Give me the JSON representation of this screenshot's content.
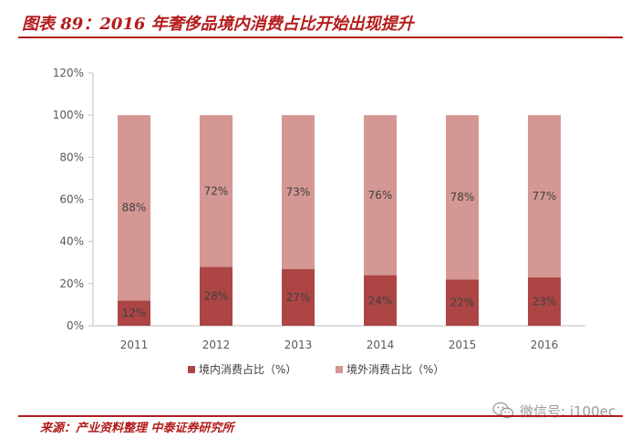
{
  "header": {
    "title": "图表 89：2016 年奢侈品境内消费占比开始出现提升"
  },
  "footer": {
    "source": "来源：产业资料整理 中泰证券研究所",
    "watermark": "微信号: i100ec",
    "wechat_icon": "wechat-icon"
  },
  "colors": {
    "accent": "#b31b1b",
    "domestic": "#ad4545",
    "overseas": "#d49793"
  },
  "chart_data": {
    "type": "bar",
    "stacked": true,
    "categories": [
      "2011",
      "2012",
      "2013",
      "2014",
      "2015",
      "2016"
    ],
    "series": [
      {
        "name": "境内消费占比（%）",
        "values": [
          12,
          28,
          27,
          24,
          22,
          23
        ],
        "labels": [
          "12%",
          "28%",
          "27%",
          "24%",
          "22%",
          "23%"
        ],
        "color": "#ad4545"
      },
      {
        "name": "境外消费占比（%）",
        "values": [
          88,
          72,
          73,
          76,
          78,
          77
        ],
        "labels": [
          "88%",
          "72%",
          "73%",
          "76%",
          "78%",
          "77%"
        ],
        "color": "#d49793"
      }
    ],
    "ylim": [
      0,
      120
    ],
    "yticks": [
      "0%",
      "20%",
      "40%",
      "60%",
      "80%",
      "100%",
      "120%"
    ],
    "grid": false,
    "legend": "bottom"
  }
}
